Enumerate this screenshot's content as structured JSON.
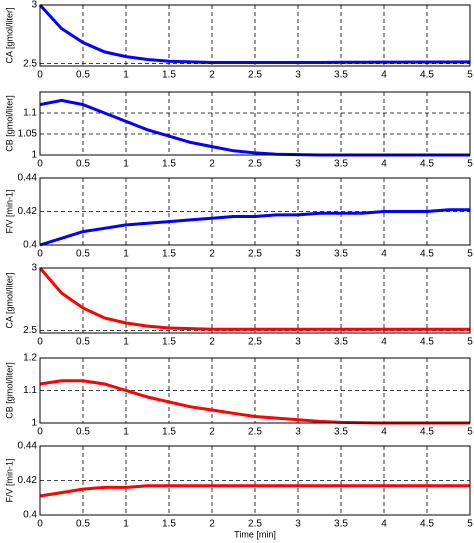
{
  "chart_data": [
    {
      "type": "line",
      "y_label": "CA [gmol/liter]",
      "color": "#0000ff",
      "x": [
        0,
        0.25,
        0.5,
        0.75,
        1,
        1.25,
        1.5,
        1.75,
        2,
        2.25,
        2.5,
        2.75,
        3,
        3.25,
        3.5,
        3.75,
        4,
        4.25,
        4.5,
        4.75,
        5
      ],
      "values": [
        3,
        2.8,
        2.68,
        2.6,
        2.56,
        2.535,
        2.52,
        2.515,
        2.51,
        2.51,
        2.51,
        2.51,
        2.51,
        2.51,
        2.512,
        2.512,
        2.513,
        2.513,
        2.514,
        2.514,
        2.515
      ],
      "xlim": [
        0,
        5
      ],
      "xticks": [
        0,
        0.5,
        1,
        1.5,
        2,
        2.5,
        3,
        3.5,
        4,
        4.5,
        5
      ],
      "ylim": [
        2.48,
        3
      ],
      "yticks": [
        2.5,
        3
      ],
      "grid": true
    },
    {
      "type": "line",
      "y_label": "CB [gmol/liter]",
      "color": "#0000ff",
      "x": [
        0,
        0.25,
        0.5,
        0.75,
        1,
        1.25,
        1.5,
        1.75,
        2,
        2.25,
        2.5,
        2.75,
        3,
        3.25,
        3.5,
        3.75,
        4,
        4.25,
        4.5,
        4.75,
        5
      ],
      "values": [
        1.12,
        1.13,
        1.12,
        1.1,
        1.08,
        1.06,
        1.045,
        1.03,
        1.02,
        1.01,
        1.005,
        1.002,
        1.001,
        1,
        1,
        1,
        1,
        1,
        1,
        1,
        1
      ],
      "xlim": [
        0,
        5
      ],
      "xticks": [
        0,
        0.5,
        1,
        1.5,
        2,
        2.5,
        3,
        3.5,
        4,
        4.5,
        5
      ],
      "ylim": [
        1,
        1.15
      ],
      "yticks": [
        1,
        1.05,
        1.1
      ],
      "grid": true
    },
    {
      "type": "line",
      "y_label": "F/V [min-1]",
      "color": "#0000ff",
      "x": [
        0,
        0.25,
        0.5,
        0.75,
        1,
        1.25,
        1.5,
        1.75,
        2,
        2.25,
        2.5,
        2.75,
        3,
        3.25,
        3.5,
        3.75,
        4,
        4.25,
        4.5,
        4.75,
        5
      ],
      "values": [
        0.4,
        0.404,
        0.408,
        0.41,
        0.412,
        0.413,
        0.414,
        0.415,
        0.416,
        0.417,
        0.417,
        0.418,
        0.418,
        0.419,
        0.419,
        0.419,
        0.42,
        0.42,
        0.42,
        0.421,
        0.421
      ],
      "xlim": [
        0,
        5
      ],
      "xticks": [
        0,
        0.5,
        1,
        1.5,
        2,
        2.5,
        3,
        3.5,
        4,
        4.5,
        5
      ],
      "ylim": [
        0.4,
        0.44
      ],
      "yticks": [
        0.4,
        0.42,
        0.44
      ],
      "grid": true
    },
    {
      "type": "line",
      "y_label": "CA [gmol/liter]",
      "color": "#ff0000",
      "x": [
        0,
        0.25,
        0.5,
        0.75,
        1,
        1.25,
        1.5,
        1.75,
        2,
        2.25,
        2.5,
        2.75,
        3,
        3.25,
        3.5,
        3.75,
        4,
        4.25,
        4.5,
        4.75,
        5
      ],
      "values": [
        3,
        2.8,
        2.68,
        2.6,
        2.56,
        2.535,
        2.52,
        2.515,
        2.51,
        2.51,
        2.51,
        2.51,
        2.51,
        2.51,
        2.51,
        2.51,
        2.51,
        2.51,
        2.51,
        2.51,
        2.51
      ],
      "xlim": [
        0,
        5
      ],
      "xticks": [
        0,
        0.5,
        1,
        1.5,
        2,
        2.5,
        3,
        3.5,
        4,
        4.5,
        5
      ],
      "ylim": [
        2.48,
        3
      ],
      "yticks": [
        2.5,
        3
      ],
      "grid": true
    },
    {
      "type": "line",
      "y_label": "CB [gmol/liter]",
      "color": "#ff0000",
      "x": [
        0,
        0.25,
        0.5,
        0.75,
        1,
        1.25,
        1.5,
        1.75,
        2,
        2.25,
        2.5,
        2.75,
        3,
        3.25,
        3.5,
        3.75,
        4,
        4.25,
        4.5,
        4.75,
        5
      ],
      "values": [
        1.12,
        1.13,
        1.13,
        1.12,
        1.1,
        1.08,
        1.065,
        1.05,
        1.04,
        1.03,
        1.02,
        1.015,
        1.01,
        1.005,
        1.002,
        1.001,
        1,
        1,
        1,
        1,
        1
      ],
      "xlim": [
        0,
        5
      ],
      "xticks": [
        0,
        0.5,
        1,
        1.5,
        2,
        2.5,
        3,
        3.5,
        4,
        4.5,
        5
      ],
      "ylim": [
        1,
        1.2
      ],
      "yticks": [
        1,
        1.1,
        1.2
      ],
      "grid": true
    },
    {
      "type": "line",
      "y_label": "F/V [min-1]",
      "x_label": "Time [min]",
      "color": "#ff0000",
      "x": [
        0,
        0.25,
        0.5,
        0.75,
        1,
        1.25,
        1.5,
        1.75,
        2,
        2.25,
        2.5,
        2.75,
        3,
        3.25,
        3.5,
        3.75,
        4,
        4.25,
        4.5,
        4.75,
        5
      ],
      "values": [
        0.411,
        0.413,
        0.415,
        0.416,
        0.416,
        0.417,
        0.417,
        0.417,
        0.417,
        0.417,
        0.417,
        0.417,
        0.417,
        0.417,
        0.417,
        0.417,
        0.417,
        0.417,
        0.417,
        0.417,
        0.417
      ],
      "xlim": [
        0,
        5
      ],
      "xticks": [
        0,
        0.5,
        1,
        1.5,
        2,
        2.5,
        3,
        3.5,
        4,
        4.5,
        5
      ],
      "ylim": [
        0.4,
        0.44
      ],
      "yticks": [
        0.4,
        0.42,
        0.44
      ],
      "grid": true
    }
  ]
}
